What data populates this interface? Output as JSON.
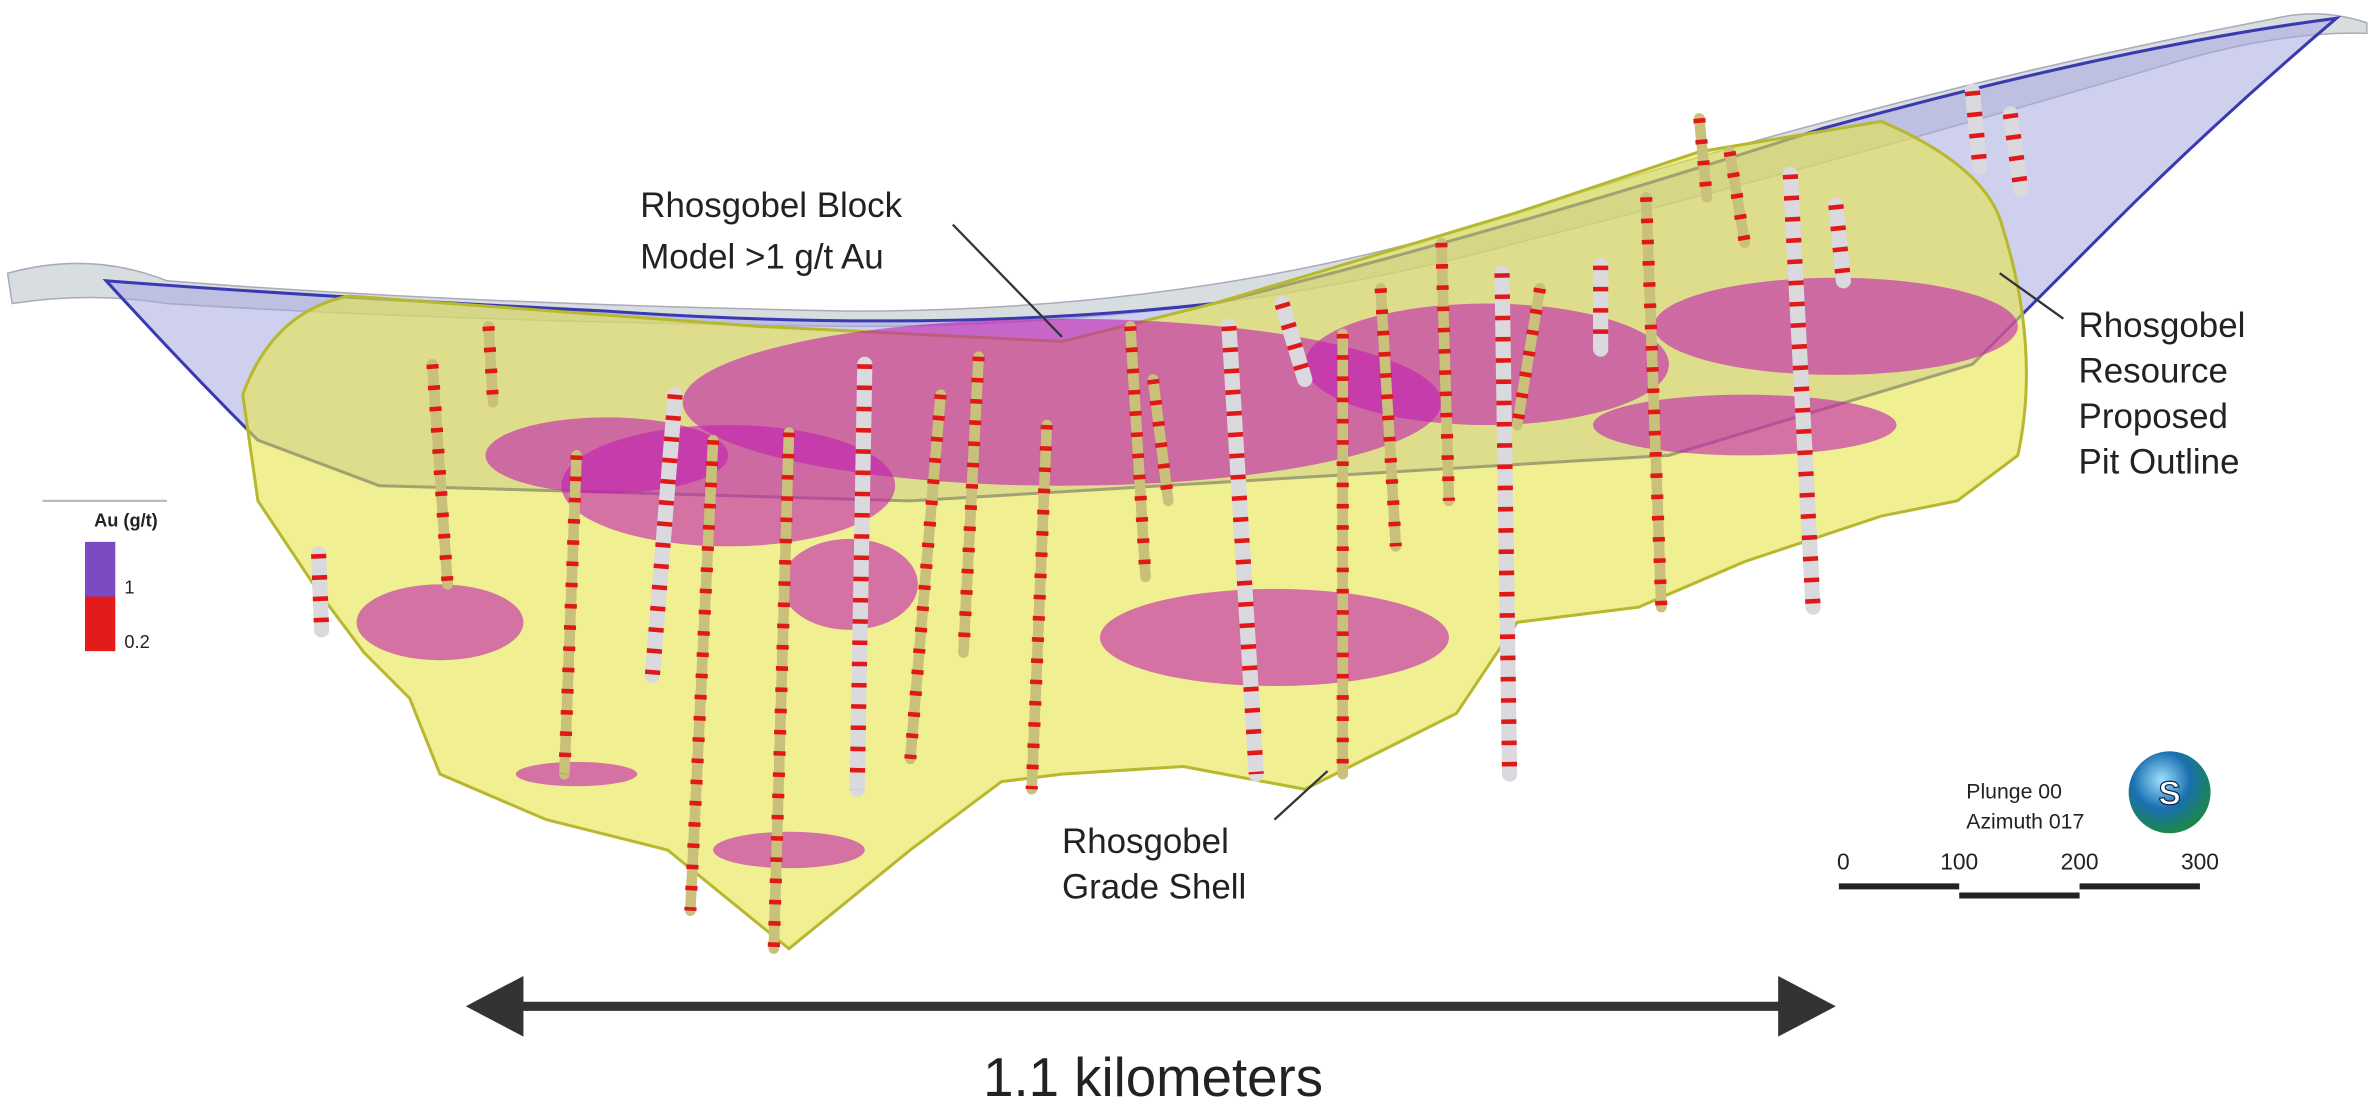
{
  "callouts": [
    {
      "lines": [
        "Rhosgobel Block",
        "Model >1 g/t Au"
      ]
    },
    {
      "lines": [
        "Rhosgobel",
        "Resource",
        "Proposed",
        "Pit Outline"
      ]
    },
    {
      "lines": [
        "Rhosgobel",
        "Grade Shell"
      ]
    }
  ],
  "legend": {
    "title": "Au (g/t)",
    "entries": [
      {
        "label": "1",
        "color": "#7b4bc4"
      },
      {
        "label": "0.2",
        "color": "#e31b1b"
      }
    ]
  },
  "view": {
    "plunge": "Plunge 00",
    "azimuth": "Azimuth 017"
  },
  "compass": "S",
  "scale_bar": {
    "ticks": [
      0,
      100,
      200,
      300
    ]
  },
  "extent": "1.1 kilometers"
}
